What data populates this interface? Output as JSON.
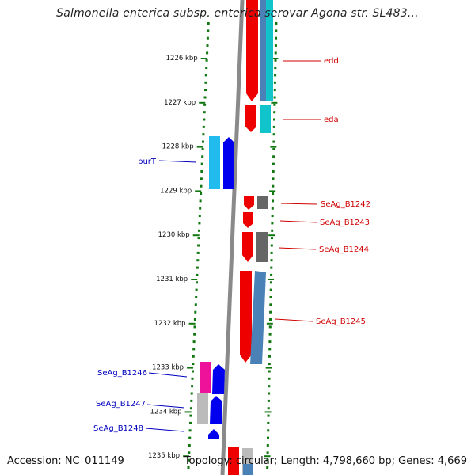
{
  "title": "Salmonella enterica subsp. enterica serovar Agona str. SL483...",
  "footer": {
    "accession": "Accession: NC_011149",
    "summary": "Topology: circular; Length: 4,798,660 bp; Genes: 4,669"
  },
  "axis": {
    "ticks": [
      "1226 kbp",
      "1227 kbp",
      "1228 kbp",
      "1229 kbp",
      "1230 kbp",
      "1231 kbp",
      "1232 kbp",
      "1233 kbp",
      "1234 kbp",
      "1235 kbp"
    ]
  },
  "colors": {
    "tick": "#117711",
    "backbone": "#8a8a8a",
    "right_label": "#d00000",
    "left_label": "#0000c0",
    "red": "#ee0000",
    "cyan": "#11c4cc",
    "steel": "#4a82b8",
    "gray": "#666666",
    "light_blue": "#22bbee",
    "blue": "#0000ee",
    "magenta": "#ee1199",
    "light_gray": "#bbbbbb"
  },
  "gene_labels": {
    "right": [
      "edd",
      "eda",
      "SeAg_B1242",
      "SeAg_B1243",
      "SeAg_B1244",
      "SeAg_B1245"
    ],
    "left": [
      "purT",
      "SeAg_B1246",
      "SeAg_B1247",
      "SeAg_B1248"
    ]
  }
}
